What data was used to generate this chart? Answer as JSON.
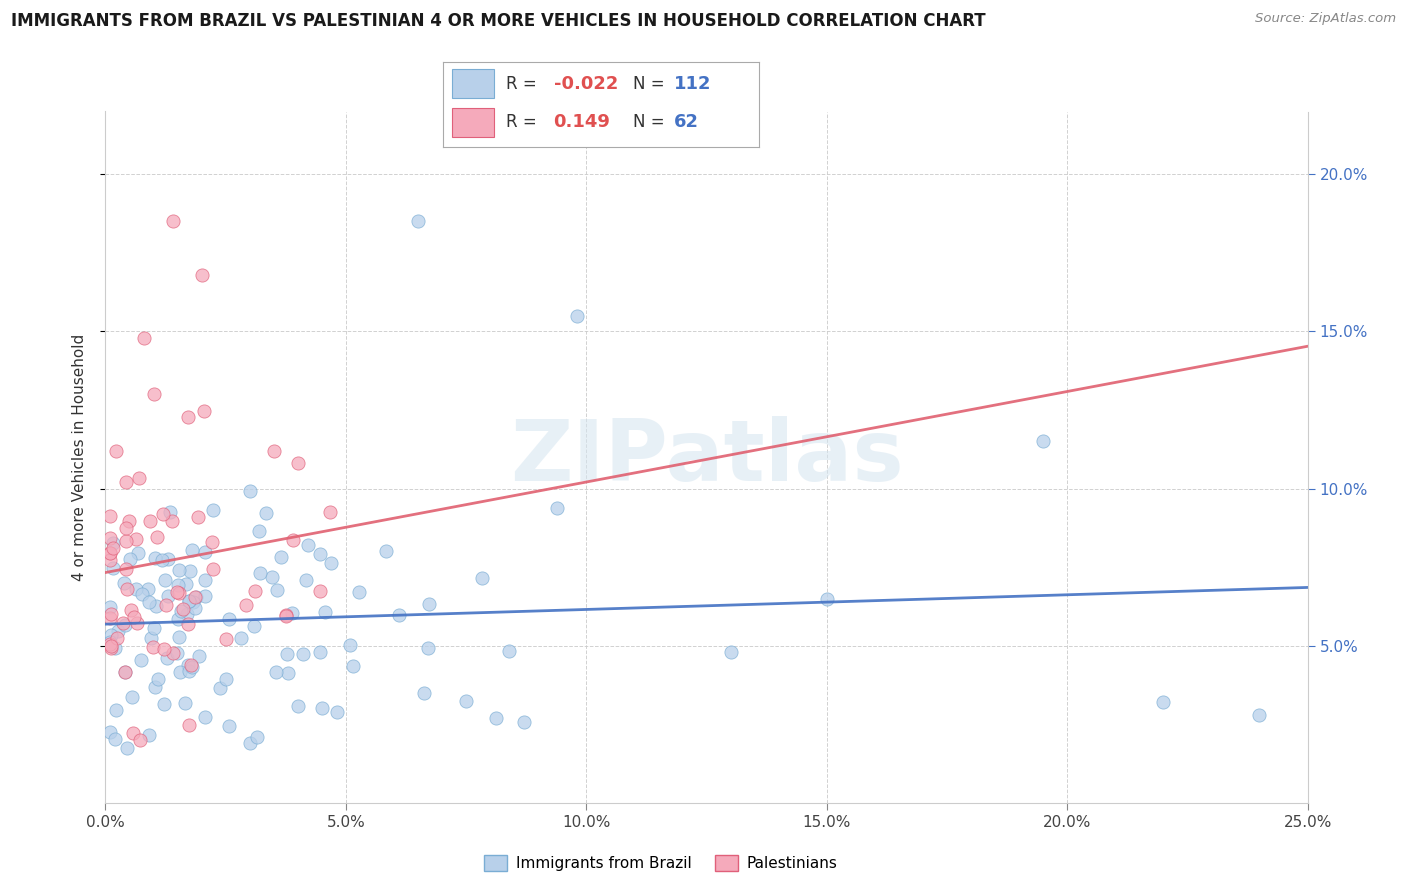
{
  "title": "IMMIGRANTS FROM BRAZIL VS PALESTINIAN 4 OR MORE VEHICLES IN HOUSEHOLD CORRELATION CHART",
  "source": "Source: ZipAtlas.com",
  "ylabel": "4 or more Vehicles in Household",
  "xlim": [
    0.0,
    0.25
  ],
  "ylim": [
    0.0,
    0.22
  ],
  "xticks": [
    0.0,
    0.05,
    0.1,
    0.15,
    0.2,
    0.25
  ],
  "xticklabels": [
    "0.0%",
    "5.0%",
    "10.0%",
    "15.0%",
    "20.0%",
    "25.0%"
  ],
  "yticks": [
    0.05,
    0.1,
    0.15,
    0.2
  ],
  "yticklabels_right": [
    "5.0%",
    "10.0%",
    "15.0%",
    "20.0%"
  ],
  "color_brazil": "#b8d0ea",
  "color_brazil_edge": "#7aadd4",
  "color_palestinians": "#f5aabb",
  "color_palestinians_edge": "#e0607a",
  "color_line_brazil": "#4472c4",
  "color_line_palestinians": "#e06070",
  "color_rvalue": "#e05050",
  "color_nvalue": "#4472c4",
  "watermark_color": "#d5e5f0",
  "legend_r_brazil": "-0.022",
  "legend_n_brazil": "112",
  "legend_r_palestinians": "0.149",
  "legend_n_palestinians": "62",
  "grid_color": "#cccccc",
  "title_color": "#1a1a1a",
  "source_color": "#888888",
  "right_tick_color": "#4472c4"
}
